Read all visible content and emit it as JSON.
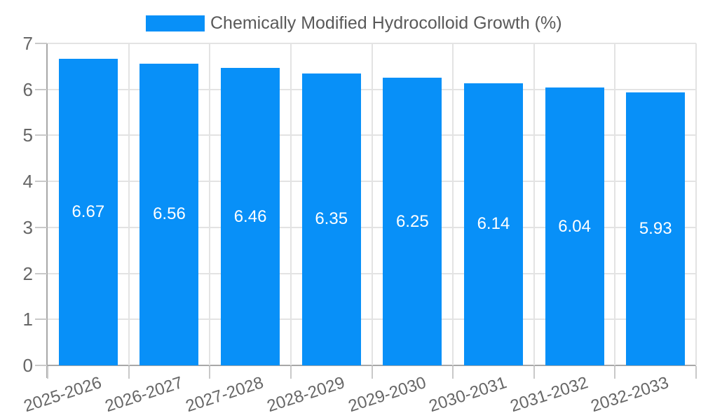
{
  "legend": {
    "label": "Chemically Modified Hydrocolloid Growth (%)"
  },
  "chart_data": {
    "type": "bar",
    "title": "Chemically Modified Hydrocolloid Growth (%)",
    "categories": [
      "2025-2026",
      "2026-2027",
      "2027-2028",
      "2028-2029",
      "2029-2030",
      "2030-2031",
      "2031-2032",
      "2032-2033"
    ],
    "values": [
      6.67,
      6.56,
      6.46,
      6.35,
      6.25,
      6.14,
      6.04,
      5.93
    ],
    "value_labels": [
      "6.67",
      "6.56",
      "6.46",
      "6.35",
      "6.25",
      "6.14",
      "6.04",
      "5.93"
    ],
    "xlabel": "",
    "ylabel": "",
    "ylim": [
      0,
      7
    ],
    "yticks": [
      0,
      1,
      2,
      3,
      4,
      5,
      6,
      7
    ],
    "grid": true,
    "legend_position": "top",
    "value_label_position": "center"
  },
  "colors": {
    "bar": "#0890f8",
    "bar_value_text": "#ffffff",
    "grid": "#e3e3e3",
    "tick": "#c9c9c9",
    "axis": "#a8a8a8",
    "tick_text": "#666666",
    "legend_text": "#595959",
    "background": "#ffffff"
  }
}
